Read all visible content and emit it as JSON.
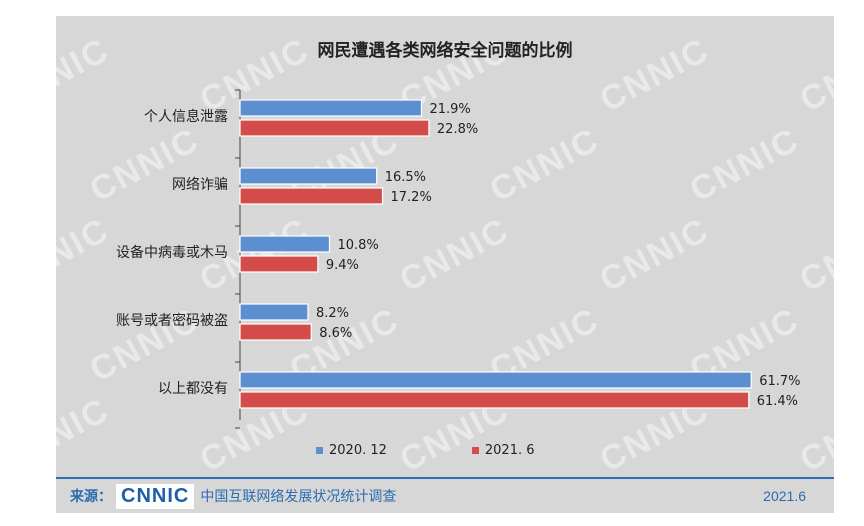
{
  "chart_data": {
    "type": "bar",
    "orientation": "horizontal",
    "title": "网民遭遇各类网络安全问题的比例",
    "categories": [
      "个人信息泄露",
      "网络诈骗",
      "设备中病毒或木马",
      "账号或者密码被盗",
      "以上都没有"
    ],
    "series": [
      {
        "name": "2020. 12",
        "values": [
          21.9,
          16.5,
          10.8,
          8.2,
          61.7
        ],
        "labels": [
          "21.9%",
          "16.5%",
          "10.8%",
          "8.2%",
          "61.7%"
        ],
        "color": "#5b8fd0"
      },
      {
        "name": "2021. 6",
        "values": [
          22.8,
          17.2,
          9.4,
          8.6,
          61.4
        ],
        "labels": [
          "22.8%",
          "17.2%",
          "9.4%",
          "8.6%",
          "61.4%"
        ],
        "color": "#d34c4a"
      }
    ],
    "xlim": [
      0,
      70
    ],
    "legend_position": "bottom",
    "grid": false
  },
  "watermark": "CNNIC",
  "footer": {
    "source_label": "来源：",
    "logo_text": "CNNIC",
    "source_name": "中国互联网络发展状况统计调查",
    "date": "2021.6"
  }
}
